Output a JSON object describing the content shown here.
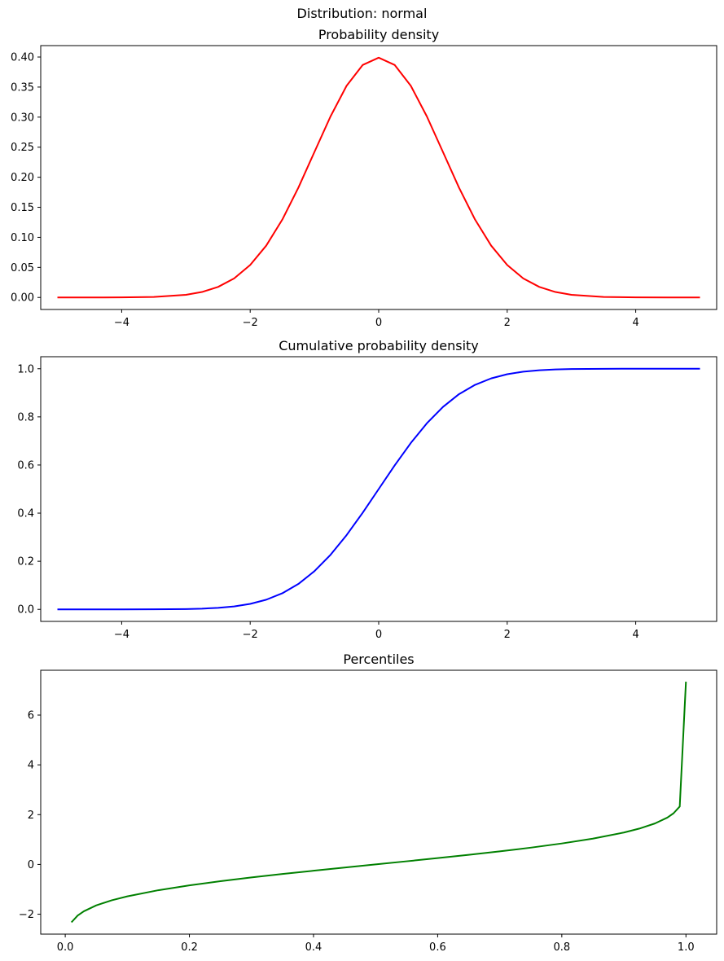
{
  "figure": {
    "suptitle": "Distribution: normal"
  },
  "chart_data": [
    {
      "type": "line",
      "title": "Probability density",
      "xlabel": "",
      "ylabel": "",
      "xlim": [
        -5.26,
        5.26
      ],
      "ylim": [
        -0.02,
        0.419
      ],
      "xticks": [
        -4,
        -2,
        0,
        2,
        4
      ],
      "xtick_labels": [
        "−4",
        "−2",
        "0",
        "2",
        "4"
      ],
      "yticks": [
        0.0,
        0.05,
        0.1,
        0.15,
        0.2,
        0.25,
        0.3,
        0.35,
        0.4
      ],
      "ytick_labels": [
        "0.00",
        "0.05",
        "0.10",
        "0.15",
        "0.20",
        "0.25",
        "0.30",
        "0.35",
        "0.40"
      ],
      "grid": false,
      "series": [
        {
          "color": "#ff0000",
          "x": [
            -5,
            -4.5,
            -4,
            -3.5,
            -3,
            -2.75,
            -2.5,
            -2.25,
            -2,
            -1.75,
            -1.5,
            -1.25,
            -1,
            -0.75,
            -0.5,
            -0.25,
            0,
            0.25,
            0.5,
            0.75,
            1,
            1.25,
            1.5,
            1.75,
            2,
            2.25,
            2.5,
            2.75,
            3,
            3.5,
            4,
            4.5,
            5
          ],
          "y": [
            0.0,
            0.0,
            0.0001,
            0.0009,
            0.0044,
            0.0091,
            0.0175,
            0.0317,
            0.054,
            0.0863,
            0.1295,
            0.1826,
            0.242,
            0.3011,
            0.3521,
            0.3867,
            0.3989,
            0.3867,
            0.3521,
            0.3011,
            0.242,
            0.1826,
            0.1295,
            0.0863,
            0.054,
            0.0317,
            0.0175,
            0.0091,
            0.0044,
            0.0009,
            0.0001,
            0.0,
            0.0
          ]
        }
      ]
    },
    {
      "type": "line",
      "title": "Cumulative probability density",
      "xlabel": "",
      "ylabel": "",
      "xlim": [
        -5.26,
        5.26
      ],
      "ylim": [
        -0.05,
        1.05
      ],
      "xticks": [
        -4,
        -2,
        0,
        2,
        4
      ],
      "xtick_labels": [
        "−4",
        "−2",
        "0",
        "2",
        "4"
      ],
      "yticks": [
        0.0,
        0.2,
        0.4,
        0.6,
        0.8,
        1.0
      ],
      "ytick_labels": [
        "0.0",
        "0.2",
        "0.4",
        "0.6",
        "0.8",
        "1.0"
      ],
      "grid": false,
      "series": [
        {
          "color": "#0000ff",
          "x": [
            -5,
            -4.5,
            -4,
            -3.5,
            -3,
            -2.75,
            -2.5,
            -2.25,
            -2,
            -1.75,
            -1.5,
            -1.25,
            -1,
            -0.75,
            -0.5,
            -0.25,
            0,
            0.25,
            0.5,
            0.75,
            1,
            1.25,
            1.5,
            1.75,
            2,
            2.25,
            2.5,
            2.75,
            3,
            3.5,
            4,
            4.5,
            5
          ],
          "y": [
            0.0,
            0.0,
            0.0,
            0.0002,
            0.0013,
            0.003,
            0.0062,
            0.0122,
            0.0228,
            0.0401,
            0.0668,
            0.1056,
            0.1587,
            0.2266,
            0.3085,
            0.4013,
            0.5,
            0.5987,
            0.6915,
            0.7734,
            0.8413,
            0.8944,
            0.9332,
            0.9599,
            0.9772,
            0.9878,
            0.9938,
            0.997,
            0.9987,
            0.9998,
            1.0,
            1.0,
            1.0
          ]
        }
      ]
    },
    {
      "type": "line",
      "title": "Percentiles",
      "xlabel": "",
      "ylabel": "",
      "xlim": [
        -0.0395,
        1.0495
      ],
      "ylim": [
        -2.8,
        7.8
      ],
      "xticks": [
        0.0,
        0.2,
        0.4,
        0.6,
        0.8,
        1.0
      ],
      "xtick_labels": [
        "0.0",
        "0.2",
        "0.4",
        "0.6",
        "0.8",
        "1.0"
      ],
      "yticks": [
        -2,
        0,
        2,
        4,
        6
      ],
      "ytick_labels": [
        "−2",
        "0",
        "2",
        "4",
        "6"
      ],
      "grid": false,
      "series": [
        {
          "color": "#008000",
          "x": [
            0.01,
            0.02,
            0.03,
            0.05,
            0.075,
            0.1,
            0.15,
            0.2,
            0.25,
            0.3,
            0.35,
            0.4,
            0.45,
            0.5,
            0.55,
            0.6,
            0.65,
            0.7,
            0.75,
            0.8,
            0.85,
            0.9,
            0.925,
            0.95,
            0.97,
            0.98,
            0.99,
            1.0
          ],
          "y": [
            -2.326,
            -2.054,
            -1.881,
            -1.645,
            -1.44,
            -1.282,
            -1.036,
            -0.842,
            -0.674,
            -0.524,
            -0.385,
            -0.253,
            -0.126,
            0.0,
            0.126,
            0.253,
            0.385,
            0.524,
            0.674,
            0.842,
            1.036,
            1.282,
            1.44,
            1.645,
            1.881,
            2.054,
            2.326,
            7.34
          ]
        }
      ]
    }
  ]
}
